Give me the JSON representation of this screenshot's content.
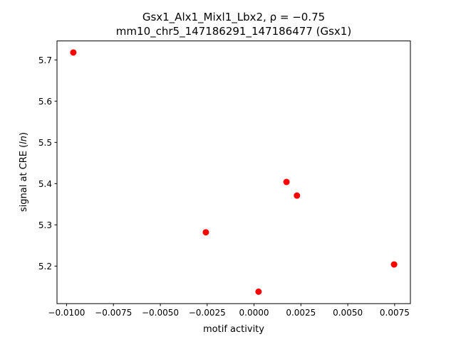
{
  "chart_data": {
    "type": "scatter",
    "title_line1": "Gsx1_Alx1_Mixl1_Lbx2, ρ = −0.75",
    "title_line2": "mm10_chr5_147186291_147186477 (Gsx1)",
    "xlabel": "motif activity",
    "ylabel": "signal at CRE (ln)",
    "xlim": [
      -0.01051,
      0.00834
    ],
    "ylim": [
      5.109,
      5.746
    ],
    "xticks": [
      -0.01,
      -0.0075,
      -0.005,
      -0.0025,
      0.0,
      0.0025,
      0.005,
      0.0075
    ],
    "xtick_labels": [
      "−0.0100",
      "−0.0075",
      "−0.0050",
      "−0.0025",
      "0.0000",
      "0.0025",
      "0.0050",
      "0.0075"
    ],
    "yticks": [
      5.2,
      5.3,
      5.4,
      5.5,
      5.6,
      5.7
    ],
    "ytick_labels": [
      "5.2",
      "5.3",
      "5.4",
      "5.5",
      "5.6",
      "5.7"
    ],
    "grid": false,
    "marker_color": "#ff0000",
    "points": [
      {
        "x": -0.00964,
        "y": 5.718
      },
      {
        "x": 0.00173,
        "y": 5.404
      },
      {
        "x": 0.00229,
        "y": 5.371
      },
      {
        "x": -0.00257,
        "y": 5.282
      },
      {
        "x": 0.00024,
        "y": 5.138
      },
      {
        "x": 0.00747,
        "y": 5.204
      }
    ]
  }
}
